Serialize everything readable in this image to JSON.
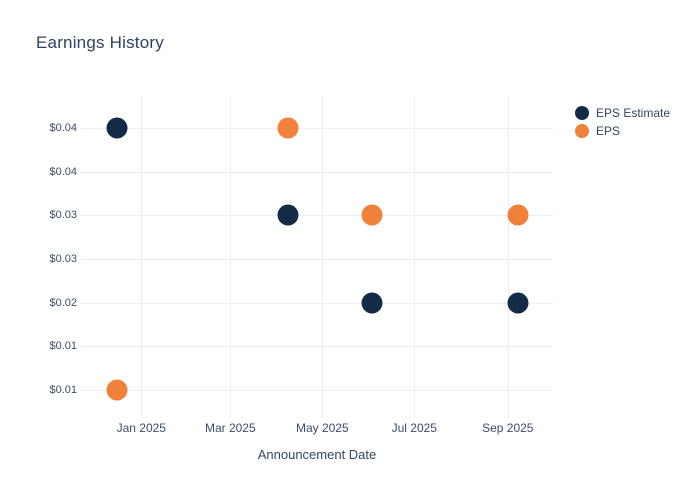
{
  "title": "Earnings History",
  "colors": {
    "background": "#ffffff",
    "grid": "#eaeef6",
    "title_text": "#2d4460",
    "tick_text": "#3b4e68",
    "axis_title_text": "#32485f",
    "eps_estimate": "#142b47",
    "eps": "#f0813a"
  },
  "chart_data": {
    "type": "scatter",
    "title": "Earnings History",
    "xlabel": "Announcement Date",
    "ylabel": "",
    "grid": true,
    "legend_position": "right",
    "marker_size_px": 21,
    "x_range": [
      "2024-11-22",
      "2025-10-01"
    ],
    "y_range": [
      0.0077,
      0.0438
    ],
    "x_ticks": [
      {
        "date": "2025-01-01",
        "label": "Jan 2025"
      },
      {
        "date": "2025-03-01",
        "label": "Mar 2025"
      },
      {
        "date": "2025-05-01",
        "label": "May 2025"
      },
      {
        "date": "2025-07-01",
        "label": "Jul 2025"
      },
      {
        "date": "2025-09-01",
        "label": "Sep 2025"
      }
    ],
    "y_ticks": [
      {
        "value": 0.04,
        "label": "$0.04"
      },
      {
        "value": 0.035,
        "label": "$0.04"
      },
      {
        "value": 0.03,
        "label": "$0.03"
      },
      {
        "value": 0.025,
        "label": "$0.03"
      },
      {
        "value": 0.02,
        "label": "$0.02"
      },
      {
        "value": 0.015,
        "label": "$0.01"
      },
      {
        "value": 0.01,
        "label": "$0.01"
      }
    ],
    "series": [
      {
        "name": "EPS Estimate",
        "color": "#142b47",
        "points": [
          {
            "x": "2024-12-16",
            "y": 0.04
          },
          {
            "x": "2025-04-08",
            "y": 0.03
          },
          {
            "x": "2025-06-03",
            "y": 0.02
          },
          {
            "x": "2025-09-08",
            "y": 0.02
          }
        ]
      },
      {
        "name": "EPS",
        "color": "#f0813a",
        "points": [
          {
            "x": "2024-12-16",
            "y": 0.01
          },
          {
            "x": "2025-04-08",
            "y": 0.04
          },
          {
            "x": "2025-06-03",
            "y": 0.03
          },
          {
            "x": "2025-09-08",
            "y": 0.03
          }
        ]
      }
    ]
  }
}
